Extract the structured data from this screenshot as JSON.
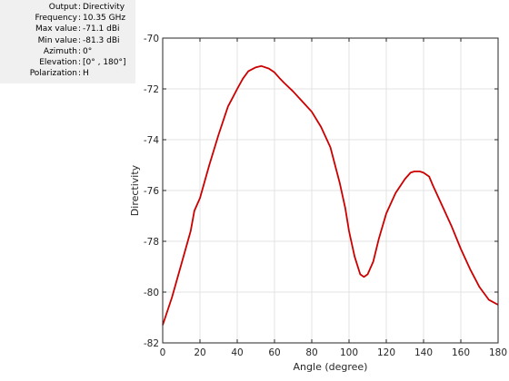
{
  "info": {
    "rows": [
      {
        "key": "Output",
        "value": "Directivity"
      },
      {
        "key": "Frequency",
        "value": "10.35 GHz"
      },
      {
        "key": "Max value",
        "value": "-71.1 dBi"
      },
      {
        "key": "Min value",
        "value": "-81.3 dBi"
      },
      {
        "key": "Azimuth",
        "value": "0°"
      },
      {
        "key": "Elevation",
        "value": "[0° , 180°]"
      },
      {
        "key": "Polarization",
        "value": "H"
      }
    ]
  },
  "chart_data": {
    "type": "line",
    "xlabel": "Angle (degree)",
    "ylabel": "Directivity",
    "xlim": [
      0,
      180
    ],
    "ylim": [
      -82,
      -70
    ],
    "xticks": [
      0,
      20,
      40,
      60,
      80,
      100,
      120,
      140,
      160,
      180
    ],
    "yticks": [
      -70,
      -72,
      -74,
      -76,
      -78,
      -80,
      -82
    ],
    "grid": true,
    "series": [
      {
        "color": "#cc0000",
        "x": [
          0,
          5,
          10,
          15,
          17,
          20,
          25,
          30,
          35,
          40,
          43,
          46,
          50,
          53,
          57,
          60,
          63,
          65,
          70,
          75,
          80,
          85,
          90,
          95,
          98,
          100,
          103,
          106,
          108,
          110,
          113,
          116,
          120,
          125,
          130,
          133,
          135,
          138,
          140,
          143,
          145,
          150,
          155,
          160,
          165,
          170,
          175,
          180
        ],
        "y": [
          -81.3,
          -80.2,
          -78.9,
          -77.6,
          -76.8,
          -76.3,
          -75.0,
          -73.8,
          -72.7,
          -72.0,
          -71.6,
          -71.3,
          -71.15,
          -71.1,
          -71.2,
          -71.35,
          -71.6,
          -71.75,
          -72.1,
          -72.5,
          -72.9,
          -73.5,
          -74.3,
          -75.7,
          -76.7,
          -77.6,
          -78.6,
          -79.3,
          -79.4,
          -79.3,
          -78.8,
          -77.9,
          -76.9,
          -76.1,
          -75.55,
          -75.3,
          -75.25,
          -75.25,
          -75.3,
          -75.45,
          -75.8,
          -76.6,
          -77.4,
          -78.3,
          -79.1,
          -79.8,
          -80.3,
          -80.5
        ]
      }
    ]
  }
}
